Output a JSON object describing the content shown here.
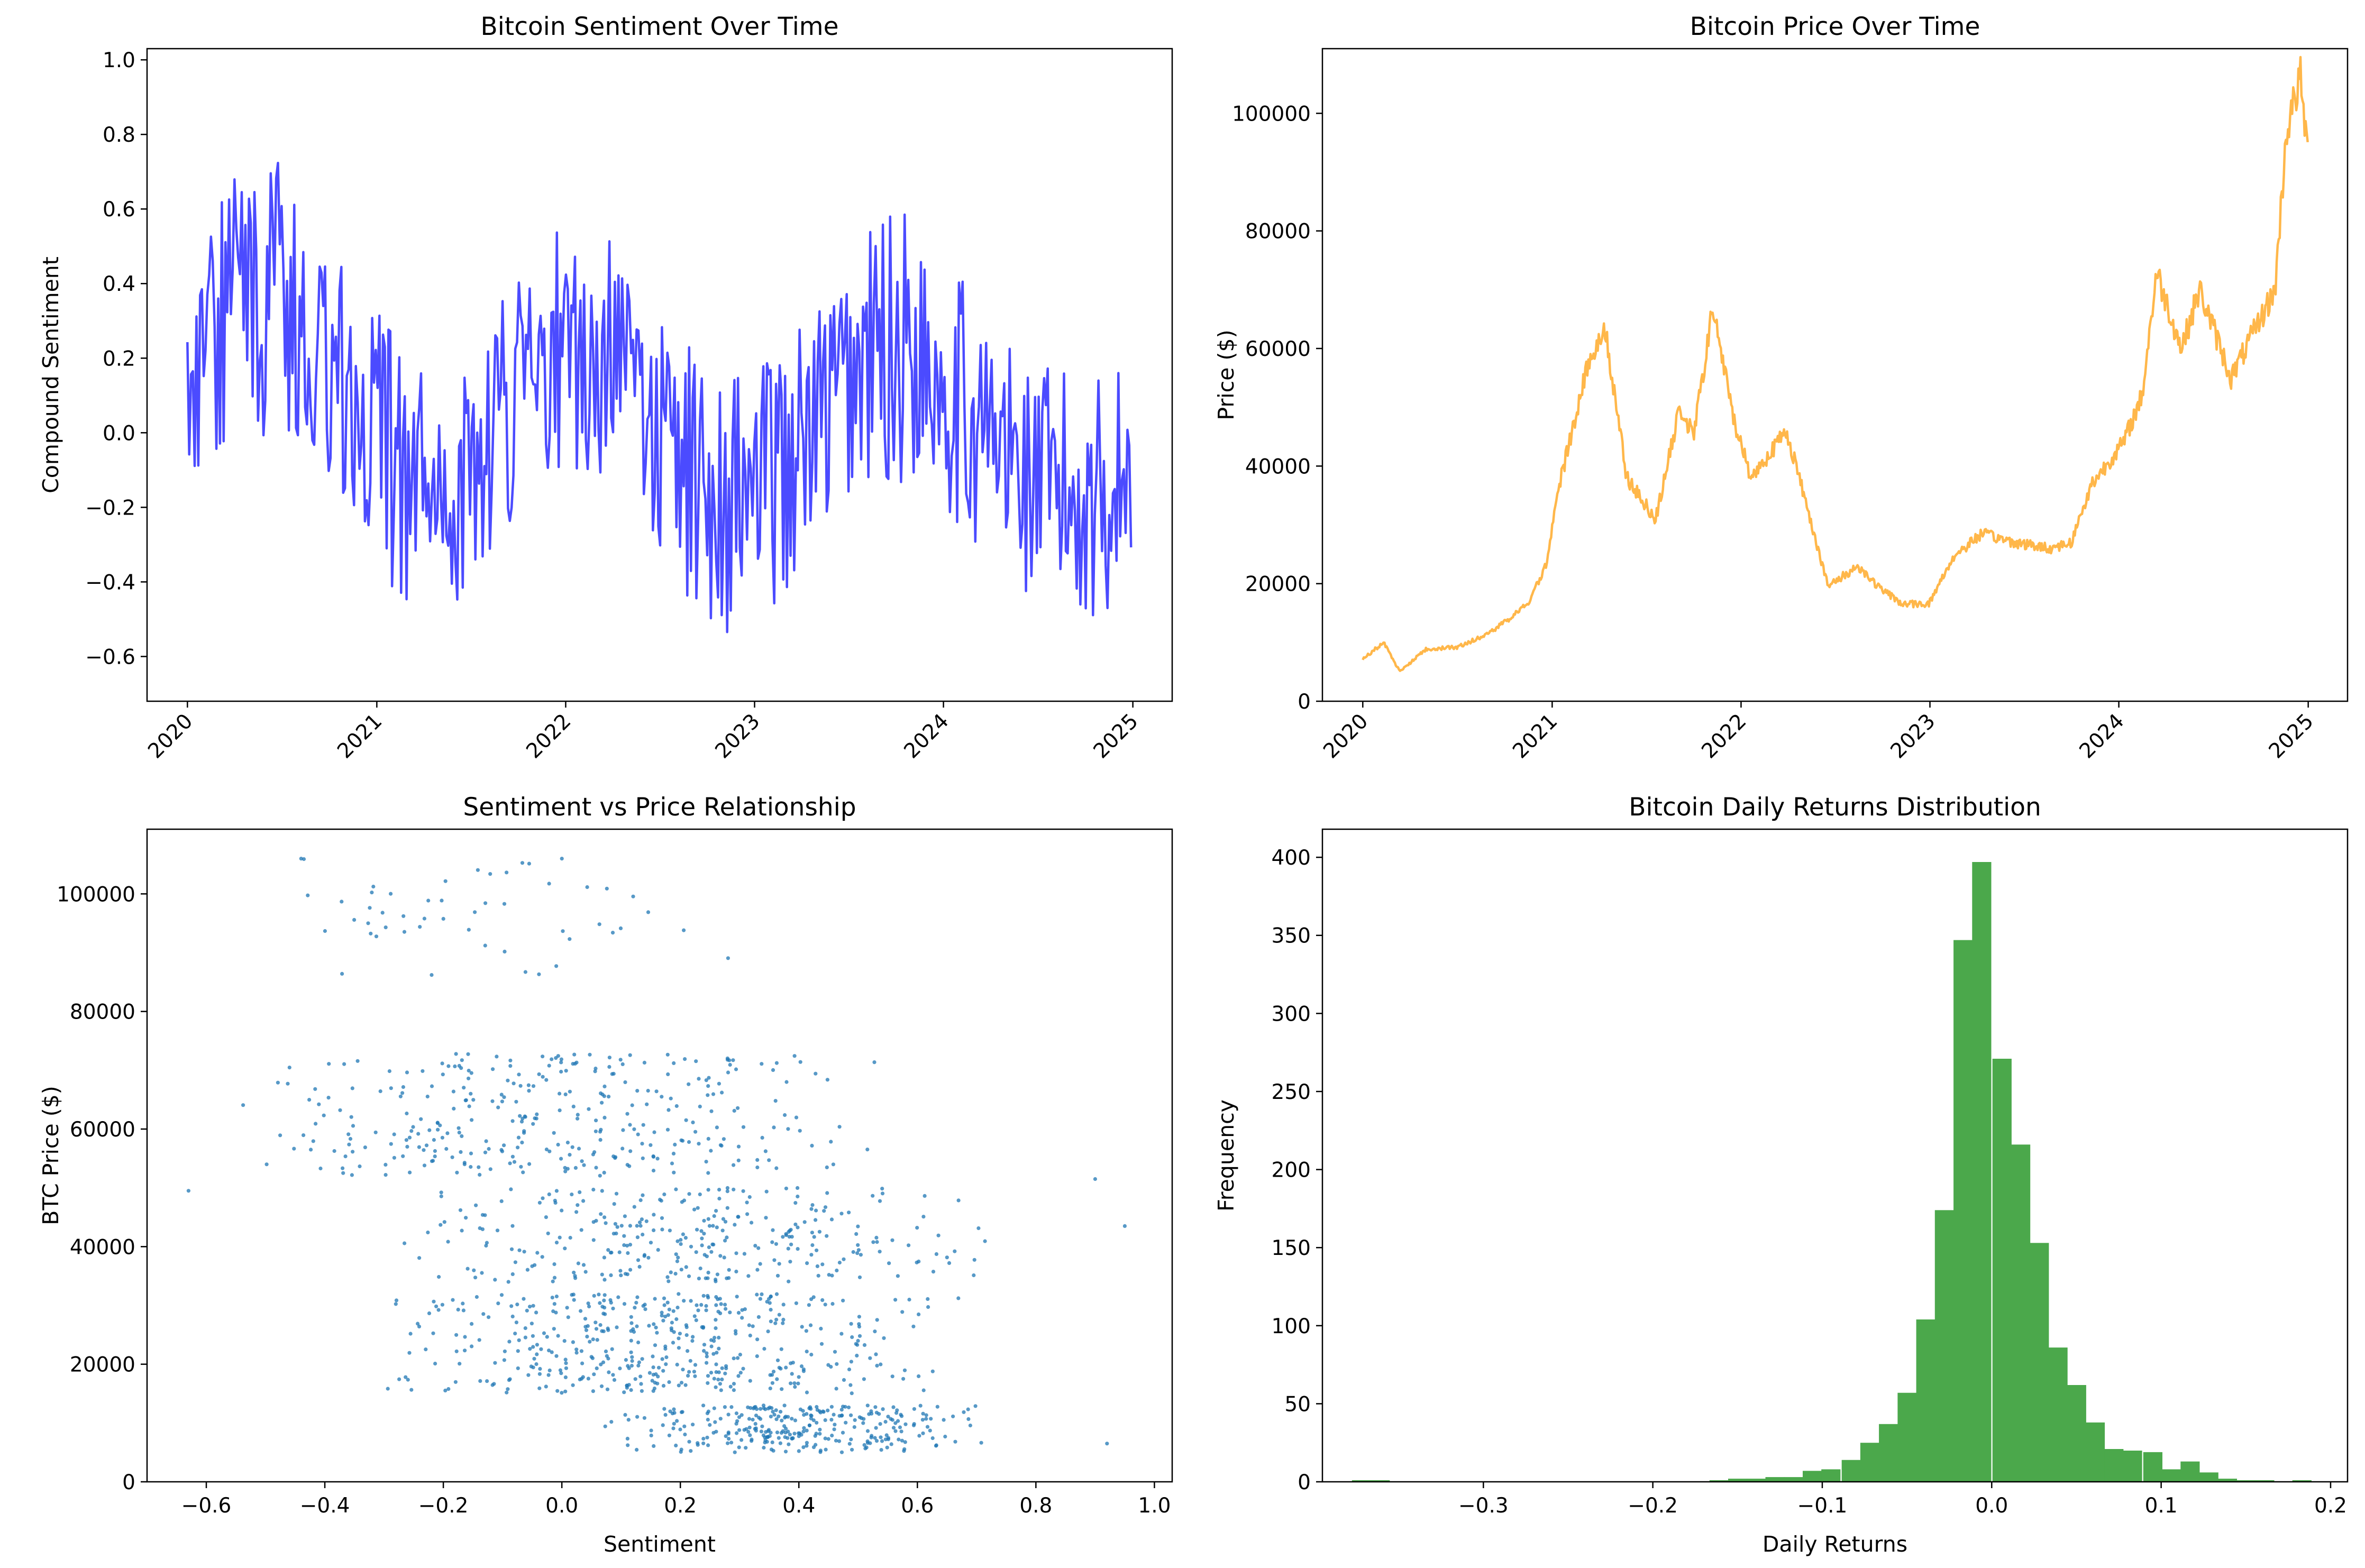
{
  "chart_data": [
    {
      "type": "line",
      "title": "Bitcoin Sentiment Over Time",
      "xlabel": "",
      "ylabel": "Compound Sentiment",
      "x_ticks": [
        "2020",
        "2021",
        "2022",
        "2023",
        "2024",
        "2025"
      ],
      "y_ticks": [
        "−0.6",
        "−0.4",
        "−0.2",
        "0.0",
        "0.2",
        "0.4",
        "0.6",
        "0.8",
        "1.0"
      ],
      "xlim": [
        "2019-10-15",
        "2025-03-18"
      ],
      "ylim": [
        -0.72,
        1.03
      ],
      "grid": false,
      "color": "#4b4bff",
      "sampling": "weekly midpoint with weekly min/max spread",
      "series": [
        {
          "x": [
            "2020-01-01",
            "2020-03-01",
            "2020-05-01",
            "2020-07-01",
            "2020-09-01",
            "2020-11-01",
            "2021-01-01",
            "2021-03-01",
            "2021-05-01",
            "2021-07-01",
            "2021-09-01",
            "2021-11-01",
            "2022-01-01",
            "2022-03-01",
            "2022-05-01",
            "2022-07-01",
            "2022-09-01",
            "2022-11-01",
            "2023-01-01",
            "2023-03-01",
            "2023-05-01",
            "2023-07-01",
            "2023-09-01",
            "2023-11-01",
            "2024-01-01",
            "2024-03-01",
            "2024-05-01",
            "2024-07-01",
            "2024-09-01",
            "2024-11-01",
            "2024-12-31"
          ],
          "mid": [
            0.15,
            0.28,
            0.4,
            0.36,
            0.3,
            0.12,
            -0.02,
            -0.12,
            -0.16,
            -0.12,
            0.04,
            0.18,
            0.26,
            0.22,
            0.12,
            -0.02,
            -0.12,
            -0.18,
            -0.16,
            -0.1,
            0.02,
            0.14,
            0.22,
            0.24,
            0.16,
            0.02,
            -0.06,
            -0.14,
            -0.18,
            -0.16,
            -0.1
          ],
          "spread": [
            0.2,
            0.35,
            0.35,
            0.33,
            0.3,
            0.28,
            0.3,
            0.3,
            0.26,
            0.28,
            0.3,
            0.3,
            0.3,
            0.3,
            0.3,
            0.28,
            0.3,
            0.32,
            0.3,
            0.3,
            0.3,
            0.3,
            0.34,
            0.35,
            0.3,
            0.3,
            0.28,
            0.28,
            0.3,
            0.3,
            0.25
          ]
        }
      ]
    },
    {
      "type": "line",
      "title": "Bitcoin Price Over Time",
      "xlabel": "",
      "ylabel": "Price ($)",
      "x_ticks": [
        "2020",
        "2021",
        "2022",
        "2023",
        "2024",
        "2025"
      ],
      "y_ticks": [
        "0",
        "20000",
        "40000",
        "60000",
        "80000",
        "100000"
      ],
      "xlim": [
        "2019-10-15",
        "2025-03-18"
      ],
      "ylim": [
        0,
        111000
      ],
      "grid": false,
      "color": "#ffb74a",
      "series": [
        {
          "x": [
            "2020-01-01",
            "2020-02-10",
            "2020-03-13",
            "2020-05-01",
            "2020-07-01",
            "2020-09-01",
            "2020-11-15",
            "2020-12-20",
            "2021-01-10",
            "2021-02-20",
            "2021-03-15",
            "2021-04-14",
            "2021-05-25",
            "2021-07-20",
            "2021-09-05",
            "2021-10-01",
            "2021-11-08",
            "2021-12-15",
            "2022-01-20",
            "2022-03-30",
            "2022-05-15",
            "2022-06-18",
            "2022-08-15",
            "2022-09-25",
            "2022-11-10",
            "2022-12-30",
            "2023-02-15",
            "2023-04-10",
            "2023-06-15",
            "2023-08-20",
            "2023-10-01",
            "2023-11-10",
            "2024-01-10",
            "2024-02-15",
            "2024-03-14",
            "2024-05-01",
            "2024-06-05",
            "2024-08-05",
            "2024-09-25",
            "2024-10-29",
            "2024-11-20",
            "2024-12-17",
            "2024-12-31"
          ],
          "y": [
            7200,
            10000,
            5000,
            8800,
            9200,
            11500,
            16500,
            23000,
            35000,
            50000,
            59000,
            63000,
            38000,
            31000,
            50000,
            45000,
            67000,
            49000,
            38000,
            46000,
            31000,
            19500,
            23000,
            19300,
            16500,
            16600,
            24500,
            28500,
            27000,
            26000,
            27000,
            37000,
            44000,
            52000,
            73000,
            60000,
            70000,
            55000,
            64000,
            70000,
            97000,
            106000,
            93000
          ]
        }
      ]
    },
    {
      "type": "scatter",
      "title": "Sentiment vs Price Relationship",
      "xlabel": "Sentiment",
      "ylabel": "BTC Price ($)",
      "x_ticks": [
        "−0.6",
        "−0.4",
        "−0.2",
        "0.0",
        "0.2",
        "0.4",
        "0.6",
        "0.8",
        "1.0"
      ],
      "y_ticks": [
        "0",
        "20000",
        "40000",
        "60000",
        "80000",
        "100000"
      ],
      "xlim": [
        -0.7,
        1.03
      ],
      "ylim": [
        0,
        111000
      ],
      "grid": false,
      "color": "#1f77b4",
      "clusters": [
        {
          "x_range": [
            0.05,
            0.75
          ],
          "y_range": [
            5000,
            13000
          ],
          "count": 300
        },
        {
          "x_range": [
            -0.35,
            0.7
          ],
          "y_range": [
            15000,
            32000
          ],
          "count": 450
        },
        {
          "x_range": [
            -0.3,
            0.75
          ],
          "y_range": [
            34000,
            50000
          ],
          "count": 300
        },
        {
          "x_range": [
            -0.55,
            0.55
          ],
          "y_range": [
            52000,
            73000
          ],
          "count": 330
        },
        {
          "x_range": [
            -0.55,
            0.3
          ],
          "y_range": [
            86000,
            106000
          ],
          "count": 50
        }
      ],
      "outliers": [
        {
          "x": 0.95,
          "y": 43500
        },
        {
          "x": 0.9,
          "y": 51500
        },
        {
          "x": -0.63,
          "y": 49500
        },
        {
          "x": 0.92,
          "y": 6500
        },
        {
          "x": -0.44,
          "y": 106000
        },
        {
          "x": 0.0,
          "y": 106000
        }
      ]
    },
    {
      "type": "bar",
      "title": "Bitcoin Daily Returns Distribution",
      "xlabel": "Daily Returns",
      "ylabel": "Frequency",
      "x_ticks": [
        "−0.3",
        "−0.2",
        "−0.1",
        "0.0",
        "0.1",
        "0.2"
      ],
      "y_ticks": [
        "0",
        "50",
        "100",
        "150",
        "200",
        "250",
        "300",
        "350",
        "400"
      ],
      "xlim": [
        -0.395,
        0.21
      ],
      "ylim": [
        0,
        418
      ],
      "grid": false,
      "color": "#4ba84b",
      "bin_width": 0.0111,
      "bins": [
        {
          "x": -0.372,
          "count": 1
        },
        {
          "x": -0.361,
          "count": 1
        },
        {
          "x": -0.161,
          "count": 1
        },
        {
          "x": -0.15,
          "count": 2
        },
        {
          "x": -0.139,
          "count": 2
        },
        {
          "x": -0.128,
          "count": 3
        },
        {
          "x": -0.117,
          "count": 3
        },
        {
          "x": -0.106,
          "count": 7
        },
        {
          "x": -0.095,
          "count": 8
        },
        {
          "x": -0.083,
          "count": 14
        },
        {
          "x": -0.072,
          "count": 25
        },
        {
          "x": -0.061,
          "count": 37
        },
        {
          "x": -0.05,
          "count": 57
        },
        {
          "x": -0.039,
          "count": 104
        },
        {
          "x": -0.028,
          "count": 174
        },
        {
          "x": -0.017,
          "count": 347
        },
        {
          "x": -0.006,
          "count": 397
        },
        {
          "x": 0.006,
          "count": 271
        },
        {
          "x": 0.017,
          "count": 216
        },
        {
          "x": 0.028,
          "count": 153
        },
        {
          "x": 0.039,
          "count": 86
        },
        {
          "x": 0.05,
          "count": 62
        },
        {
          "x": 0.061,
          "count": 38
        },
        {
          "x": 0.072,
          "count": 21
        },
        {
          "x": 0.083,
          "count": 20
        },
        {
          "x": 0.095,
          "count": 19
        },
        {
          "x": 0.106,
          "count": 8
        },
        {
          "x": 0.117,
          "count": 13
        },
        {
          "x": 0.128,
          "count": 6
        },
        {
          "x": 0.139,
          "count": 2
        },
        {
          "x": 0.15,
          "count": 1
        },
        {
          "x": 0.161,
          "count": 1
        },
        {
          "x": 0.183,
          "count": 1
        }
      ]
    }
  ]
}
